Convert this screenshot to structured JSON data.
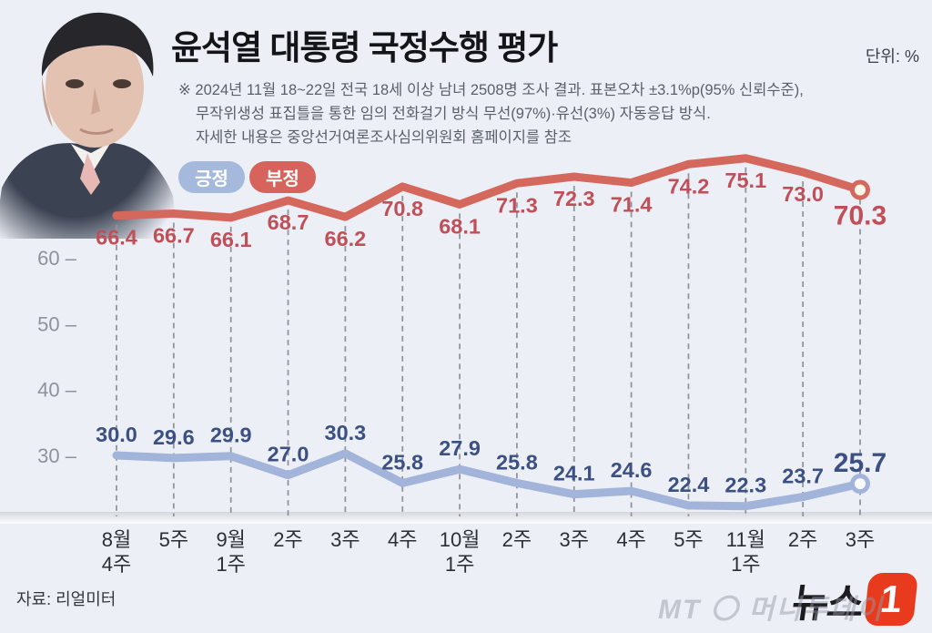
{
  "header": {
    "title": "윤석열 대통령 국정수행 평가",
    "unit_label": "단위: %",
    "notes": [
      "※ 2024년 11월 18~22일 전국 18세 이상 남녀 2508명 조사 결과. 표본오차 ±3.1%p(95% 신뢰수준),",
      "무작위생성 표집틀을 통한 임의 전화걸기 방식 무선(97%)·유선(3%) 자동응답 방식.",
      "자세한 내용은 중앙선거여론조사심의위원회 홈페이지를 참조"
    ]
  },
  "legend": [
    {
      "label": "긍정",
      "color": "#a5b9dd"
    },
    {
      "label": "부정",
      "color": "#d6645c"
    }
  ],
  "chart_data": {
    "type": "line",
    "categories": [
      "8월\n4주",
      "5주",
      "9월\n1주",
      "2주",
      "3주",
      "4주",
      "10월\n1주",
      "2주",
      "3주",
      "4주",
      "5주",
      "11월\n1주",
      "2주",
      "3주"
    ],
    "series": [
      {
        "name": "긍정",
        "color": "#a2b4d9",
        "label_color": "#3c5181",
        "values": [
          30.0,
          29.6,
          29.9,
          27.0,
          30.3,
          25.8,
          27.9,
          25.8,
          24.1,
          24.6,
          22.4,
          22.3,
          23.7,
          25.7
        ]
      },
      {
        "name": "부정",
        "color": "#d5685c",
        "label_color": "#c04f58",
        "values": [
          66.4,
          66.7,
          66.1,
          68.7,
          66.2,
          70.8,
          68.1,
          71.3,
          72.3,
          71.4,
          74.2,
          75.1,
          73.0,
          70.3
        ]
      }
    ],
    "yticks": [
      30,
      40,
      50,
      60
    ],
    "ylim": [
      20,
      80
    ],
    "grid": "dashed-vertical",
    "legend_position": "top-left",
    "title": "윤석열 대통령 국정수행 평가",
    "xlabel": "",
    "ylabel": "%"
  },
  "footer": {
    "source": "자료: 리얼미터",
    "logo_text": "뉴스",
    "logo_badge": "1",
    "watermark": "MT 〇 머니투데이"
  }
}
